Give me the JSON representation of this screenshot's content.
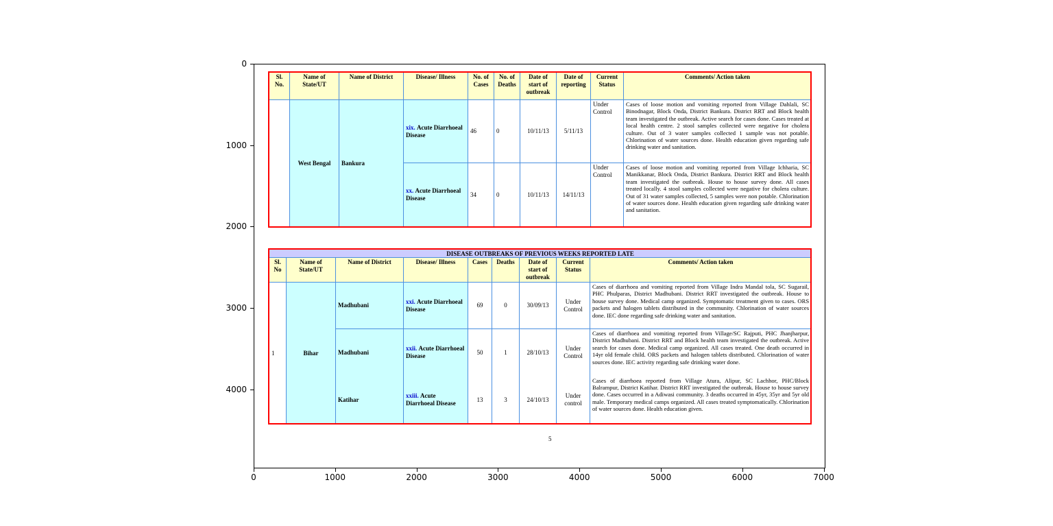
{
  "axes": {
    "x_ticks": [
      "0",
      "1000",
      "2000",
      "3000",
      "4000",
      "5000",
      "6000",
      "7000"
    ],
    "y_ticks": [
      "0",
      "1000",
      "2000",
      "3000",
      "4000"
    ],
    "x_range": [
      0,
      7020
    ],
    "y_range": [
      4970,
      0
    ]
  },
  "colors": {
    "header_bg": "#ffffcc",
    "cell_bg": "#ccffff",
    "title_bg": "#ccccff",
    "frame": "#ff0000",
    "grid": "#4a8fe0"
  },
  "table1": {
    "headers": [
      "Sl. No.",
      "Name of State/UT",
      "Name of District",
      "Disease/ Illness",
      "No. of Cases",
      "No. of Deaths",
      "Date of start of outbreak",
      "Date of reporting",
      "Current Status",
      "Comments/ Action taken"
    ],
    "state": "West Bengal",
    "district": "Bankura",
    "rows": [
      {
        "roman": "xix.",
        "disease": "Acute Diarrhoeal Disease",
        "cases": "46",
        "deaths": "0",
        "start": "10/11/13",
        "reporting": "5/11/13",
        "status": "Under Control",
        "comments": "Cases of loose motion and vomiting reported from Village Dahlali, SC Binodnagar, Block Onda, District Bankura. District RRT and Block health team investigated the outbreak. Active search for cases done. Cases treated at local health centre. 2 stool samples collected were negative for cholera culture. Out of 3 water samples collected 1 sample was not potable. Chlorination of water sources done. Health education given regarding safe drinking water and sanitation."
      },
      {
        "roman": "xx.",
        "disease": "Acute Diarrhoeal Disease",
        "cases": "34",
        "deaths": "0",
        "start": "10/11/13",
        "reporting": "14/11/13",
        "status": "Under Control",
        "comments": "Cases of loose motion and vomiting reported from Village Ichharia, SC Manikkanar, Block Onda, District Bankura. District RRT and Block health team investigated the outbreak. House to house survey done. All cases treated locally. 4 stool samples collected were negative for cholera culture. Out of 31 water samples collected, 5 samples were non potable. Chlorination of water sources done. Health education given regarding safe drinking water and sanitation."
      }
    ]
  },
  "table2": {
    "title": "DISEASE OUTBREAKS OF PREVIOUS WEEKS REPORTED LATE",
    "headers": [
      "Sl. No",
      "Name of State/UT",
      "Name of District",
      "Disease/ Illness",
      "Cases",
      "Deaths",
      "Date of start of outbreak",
      "Current Status",
      "Comments/ Action taken"
    ],
    "sl": "1",
    "state": "Bihar",
    "rows": [
      {
        "district": "Madhubani",
        "roman": "xxi.",
        "disease": "Acute Diarrhoeal Disease",
        "cases": "69",
        "deaths": "0",
        "start": "30/09/13",
        "status": "Under Control",
        "comments": "Cases of diarrhoea and vomiting reported from Village Indra Mandal tola, SC Sugarail, PHC Phulparas, District Madhubani. District RRT investigated the outbreak. House to house survey done. Medical camp organized. Symptomatic treatment given to cases. ORS packets and halogen tablets distributed in the community. Chlorination of water sources done. IEC done regarding safe drinking water and sanitation."
      },
      {
        "district": "Madhubani",
        "roman": "xxii.",
        "disease": "Acute Diarrhoeal Disease",
        "cases": "50",
        "deaths": "1",
        "start": "28/10/13",
        "status": "Under Control",
        "comments": "Cases of diarrhoea and vomiting reported from Village/SC Rajputi, PHC Jhanjharpur, District Madhubani. District RRT and Block health team investigated the outbreak. Active search for cases done. Medical camp organized. All cases treated. One death occurred in 14yr old female child. ORS packets and halogen tablets distributed. Chlorination of water sources done. IEC activity regarding safe drinking water done."
      },
      {
        "district": "Katihar",
        "roman": "xxiii.",
        "disease": "Acute Diarrhoeal Disease",
        "cases": "13",
        "deaths": "3",
        "start": "24/10/13",
        "status": "Under control",
        "comments": "Cases of diarrhoea reported from Village Atura, Alipur, SC Lachhor, PHC/Block Balrampur, District Katihar. District RRT investigated the outbreak. House to house survey done. Cases occurred in a Adiwasi community. 3 deaths occurred in 45yr, 35yr and 5yr old male. Temporary medical camps organized. All cases treated symptomatically. Chlorination of water sources done. Health education given."
      }
    ]
  },
  "page_number": "5"
}
